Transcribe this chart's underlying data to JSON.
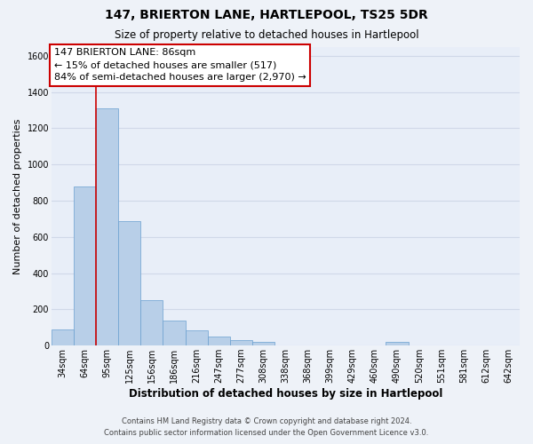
{
  "title": "147, BRIERTON LANE, HARTLEPOOL, TS25 5DR",
  "subtitle": "Size of property relative to detached houses in Hartlepool",
  "xlabel": "Distribution of detached houses by size in Hartlepool",
  "ylabel": "Number of detached properties",
  "bin_labels": [
    "34sqm",
    "64sqm",
    "95sqm",
    "125sqm",
    "156sqm",
    "186sqm",
    "216sqm",
    "247sqm",
    "277sqm",
    "308sqm",
    "338sqm",
    "368sqm",
    "399sqm",
    "429sqm",
    "460sqm",
    "490sqm",
    "520sqm",
    "551sqm",
    "581sqm",
    "612sqm",
    "642sqm"
  ],
  "bar_heights": [
    88,
    880,
    1310,
    685,
    250,
    140,
    85,
    52,
    28,
    18,
    0,
    0,
    0,
    0,
    0,
    18,
    0,
    0,
    0,
    0,
    0
  ],
  "bar_color": "#b8cfe8",
  "bar_edge_color": "#6a9fd0",
  "vline_x": 2.0,
  "ylim": [
    0,
    1650
  ],
  "yticks": [
    0,
    200,
    400,
    600,
    800,
    1000,
    1200,
    1400,
    1600
  ],
  "annotation_title": "147 BRIERTON LANE: 86sqm",
  "annotation_line1": "← 15% of detached houses are smaller (517)",
  "annotation_line2": "84% of semi-detached houses are larger (2,970) →",
  "box_facecolor": "#ffffff",
  "box_edgecolor": "#cc0000",
  "vline_color": "#cc0000",
  "footer1": "Contains HM Land Registry data © Crown copyright and database right 2024.",
  "footer2": "Contains public sector information licensed under the Open Government Licence v3.0.",
  "bg_color": "#eef2f8",
  "plot_bg_color": "#e8eef8",
  "grid_color": "#d0d8e8",
  "title_fontsize": 10,
  "subtitle_fontsize": 8.5,
  "ylabel_fontsize": 8,
  "xlabel_fontsize": 8.5,
  "tick_fontsize": 7,
  "annot_fontsize": 8,
  "footer_fontsize": 6
}
